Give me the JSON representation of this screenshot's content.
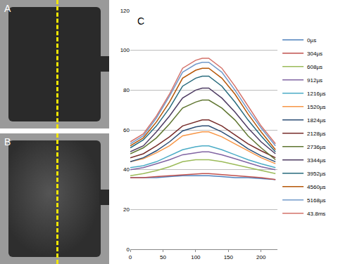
{
  "panels": [
    "A",
    "B"
  ],
  "chart_data": {
    "type": "line",
    "annotation": "C",
    "x": [
      0,
      20,
      40,
      60,
      80,
      100,
      110,
      120,
      140,
      160,
      180,
      200,
      222
    ],
    "xlim": [
      0,
      225
    ],
    "xticks": [
      0,
      50,
      100,
      150,
      200
    ],
    "ylim": [
      0,
      120
    ],
    "yticks": [
      0,
      20,
      40,
      60,
      80,
      100,
      120
    ],
    "grid": true,
    "legend": "right",
    "series": [
      {
        "name": "0µs",
        "color": "#4F81BD",
        "values": [
          36,
          36,
          36,
          36.5,
          37,
          37,
          37,
          37,
          36.5,
          36,
          36,
          35.5,
          35
        ]
      },
      {
        "name": "304µs",
        "color": "#C0504D",
        "values": [
          36,
          36,
          36.5,
          37,
          37.5,
          38,
          38,
          38,
          37.5,
          37,
          36.5,
          36,
          35
        ]
      },
      {
        "name": "608µs",
        "color": "#9BBB59",
        "values": [
          37,
          38,
          39.5,
          41.5,
          44,
          45,
          45,
          45,
          44,
          42.5,
          41,
          39.5,
          38
        ]
      },
      {
        "name": "912µs",
        "color": "#8064A2",
        "values": [
          40,
          41,
          43,
          45,
          47.5,
          48.5,
          49,
          49,
          47.5,
          45.5,
          43.5,
          41.5,
          40
        ]
      },
      {
        "name": "1216µs",
        "color": "#4BACC6",
        "values": [
          41,
          42,
          44,
          47,
          50,
          51.5,
          52,
          52,
          50,
          47.5,
          45,
          43,
          41
        ]
      },
      {
        "name": "1520µs",
        "color": "#F79646",
        "values": [
          44,
          45.5,
          48.5,
          52,
          57,
          58.5,
          59,
          59,
          56.5,
          53,
          49.5,
          46,
          43
        ]
      },
      {
        "name": "1824µs",
        "color": "#2C4D75",
        "values": [
          44,
          46,
          49.5,
          54,
          59.5,
          61.5,
          62,
          62,
          59,
          55,
          50.5,
          47,
          44
        ]
      },
      {
        "name": "2128µs",
        "color": "#772C2A",
        "values": [
          46,
          48,
          52,
          56.5,
          62,
          64,
          65,
          65,
          62,
          57.5,
          53,
          49.5,
          46
        ]
      },
      {
        "name": "2736µs",
        "color": "#5F7530",
        "values": [
          48,
          51,
          56,
          63,
          71,
          74,
          75,
          75,
          71,
          65,
          57,
          51,
          45
        ]
      },
      {
        "name": "3344µs",
        "color": "#4D3B62",
        "values": [
          49,
          52,
          59,
          67,
          76,
          80,
          81,
          81,
          76,
          69,
          61,
          54,
          48
        ]
      },
      {
        "name": "3952µs",
        "color": "#276A7C",
        "values": [
          51,
          55,
          62,
          71,
          82,
          86,
          87,
          87,
          82,
          74,
          65,
          57,
          49
        ]
      },
      {
        "name": "4560µs",
        "color": "#B65708",
        "values": [
          52,
          56,
          64,
          74,
          86,
          90,
          91,
          91,
          86,
          78,
          68,
          59,
          50
        ]
      },
      {
        "name": "5168µs",
        "color": "#729ACA",
        "values": [
          53,
          57,
          66,
          77,
          89,
          93,
          94,
          94,
          89,
          80,
          70,
          61,
          52
        ]
      },
      {
        "name": "43.8ms",
        "color": "#D4726A",
        "values": [
          54,
          58,
          67,
          78,
          91,
          95,
          96,
          96,
          91,
          82,
          72,
          62,
          53
        ]
      }
    ]
  }
}
